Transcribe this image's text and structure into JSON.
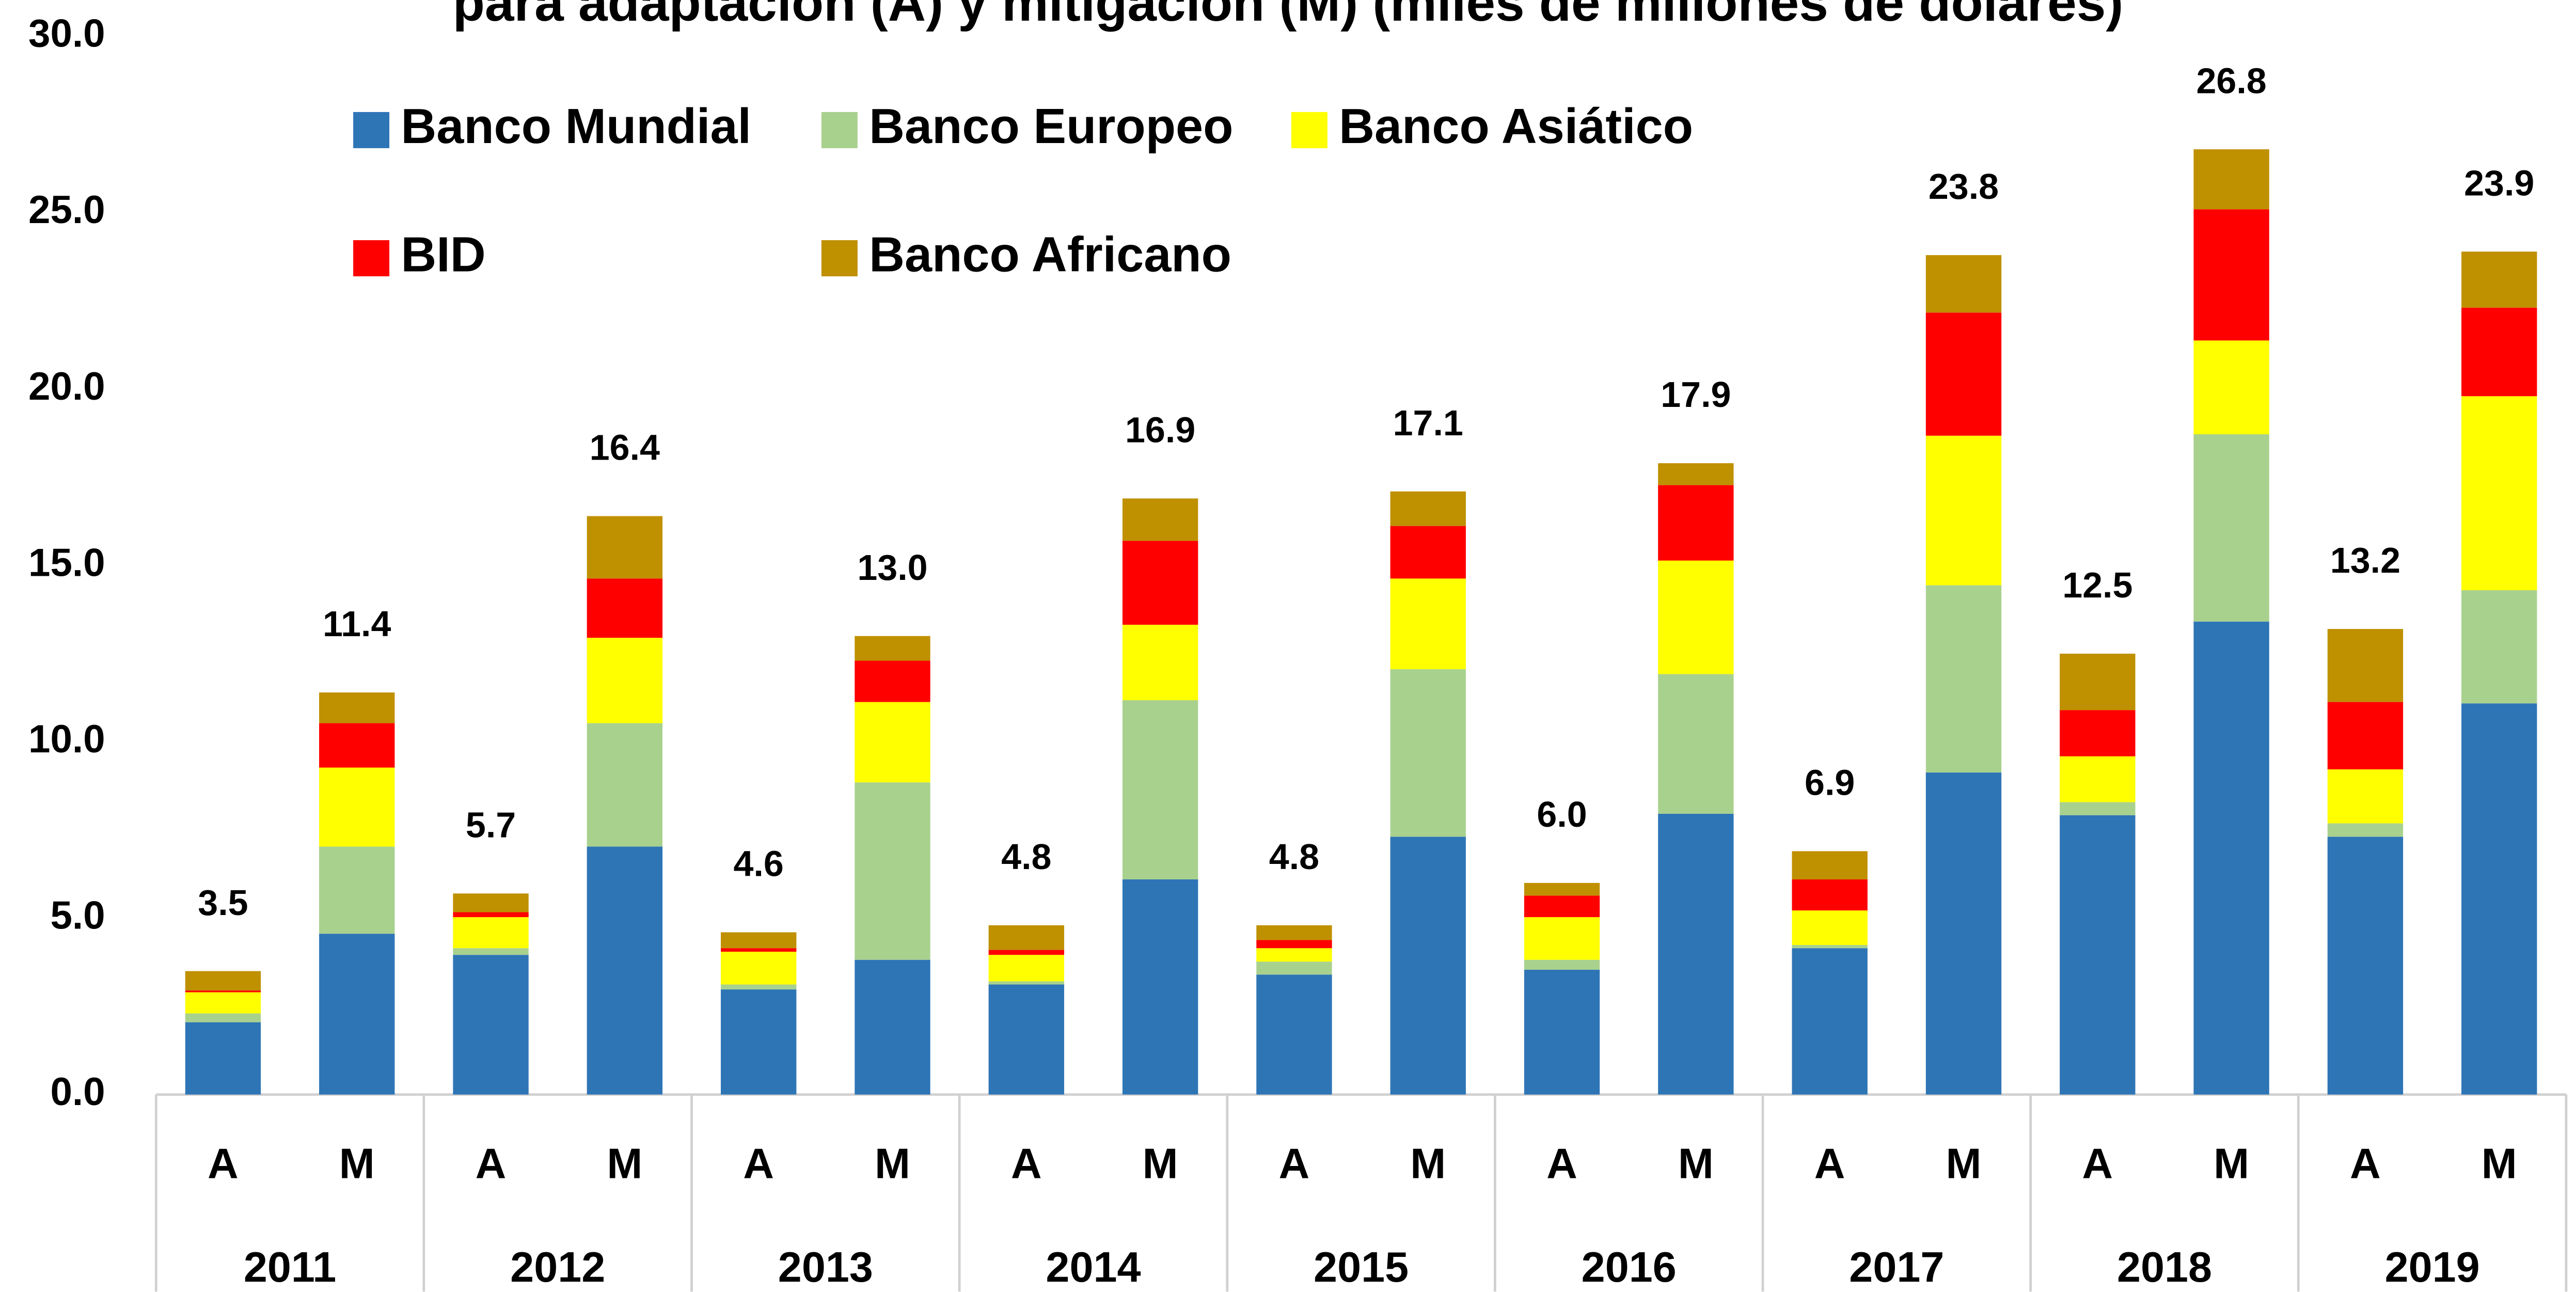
{
  "chart_data": {
    "type": "stacked_bar",
    "title": "para adaptación (A) y mitigación (M) (miles de millones de dólares)",
    "categories": [
      "A",
      "M",
      "A",
      "M",
      "A",
      "M",
      "A",
      "M",
      "A",
      "M",
      "A",
      "M",
      "A",
      "M",
      "A",
      "M",
      "A",
      "M"
    ],
    "groups": [
      "2011",
      "2012",
      "2013",
      "2014",
      "2015",
      "2016",
      "2017",
      "2018",
      "2019"
    ],
    "series": [
      {
        "name": "Banco Mundial",
        "color": "#2e75b6",
        "values": [
          2.05,
          4.56,
          3.96,
          7.03,
          2.98,
          3.82,
          3.12,
          6.1,
          3.4,
          7.31,
          3.54,
          7.96,
          4.15,
          9.13,
          7.92,
          13.41,
          7.31,
          11.09
        ]
      },
      {
        "name": "Banco Europeo",
        "color": "#a9d18e",
        "values": [
          0.25,
          2.47,
          0.19,
          3.5,
          0.14,
          5.03,
          0.09,
          5.08,
          0.37,
          4.75,
          0.28,
          3.96,
          0.09,
          5.31,
          0.37,
          5.31,
          0.38,
          3.21
        ]
      },
      {
        "name": "Banco Asiático",
        "color": "#ffff00",
        "values": [
          0.6,
          2.24,
          0.88,
          2.42,
          0.93,
          2.28,
          0.75,
          2.14,
          0.38,
          2.57,
          1.21,
          3.22,
          0.98,
          4.24,
          1.3,
          2.66,
          1.53,
          5.5
        ]
      },
      {
        "name": "BID",
        "color": "#ff0000",
        "values": [
          0.05,
          1.26,
          0.14,
          1.68,
          0.1,
          1.17,
          0.14,
          2.38,
          0.23,
          1.49,
          0.61,
          2.14,
          0.88,
          3.49,
          1.31,
          3.72,
          1.91,
          2.51
        ]
      },
      {
        "name": "Banco Africano",
        "color": "#bf9000",
        "values": [
          0.55,
          0.87,
          0.53,
          1.77,
          0.45,
          0.7,
          0.7,
          1.2,
          0.42,
          0.98,
          0.36,
          0.62,
          0.8,
          1.63,
          1.6,
          1.7,
          2.07,
          1.59
        ]
      }
    ],
    "totals": {
      "values": [
        3.5,
        11.4,
        5.7,
        16.4,
        4.6,
        13,
        4.8,
        16.9,
        4.8,
        17.1,
        6,
        17.9,
        6.9,
        23.8,
        12.5,
        26.8,
        13.2,
        23.9
      ],
      "value_labels": [
        "3.5",
        "11.4",
        "5.7",
        "16.4",
        "4.6",
        "13.0",
        "4.8",
        "16.9",
        "4.8",
        "17.1",
        "6.0",
        "17.9",
        "6.9",
        "23.8",
        "12.5",
        "26.8",
        "13.2",
        "23.9"
      ]
    },
    "ylim": [
      0,
      30
    ],
    "yticks": [
      {
        "value": 0,
        "label": "0.0"
      },
      {
        "value": 5,
        "label": "5.0"
      },
      {
        "value": 10,
        "label": "10.0"
      },
      {
        "value": 15,
        "label": "15.0"
      },
      {
        "value": 20,
        "label": "20.0"
      },
      {
        "value": 25,
        "label": "25.0"
      },
      {
        "value": 30,
        "label": "30.0"
      }
    ],
    "grid": false,
    "legend": "top-left"
  }
}
